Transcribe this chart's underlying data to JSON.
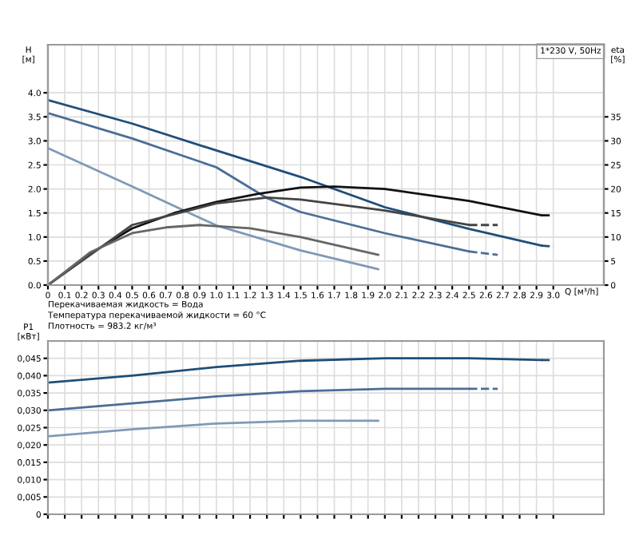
{
  "chart_data": [
    {
      "type": "line",
      "title": "1*230 V, 50Hz",
      "xlabel": "Q [м³/h]",
      "ylabel": "H\n[м]",
      "y2label": "eta\n[%]",
      "xlim": [
        0,
        3.3
      ],
      "xticks": [
        0,
        0.1,
        0.2,
        0.3,
        0.4,
        0.5,
        0.6,
        0.7,
        0.8,
        0.9,
        {
          "value": 1,
          "label": "1.0"
        },
        1.1,
        1.2,
        1.3,
        1.4,
        1.5,
        1.6,
        1.7,
        1.8,
        1.9,
        {
          "value": 2,
          "label": "2.0"
        },
        2.1,
        2.2,
        2.3,
        2.4,
        2.5,
        2.6,
        2.7,
        2.8,
        2.9,
        {
          "value": 3,
          "label": "3.0"
        }
      ],
      "ylim": [
        0,
        5.0
      ],
      "yticks": [
        {
          "value": 0,
          "label": "0.0"
        },
        0.5,
        {
          "value": 1,
          "label": "1.0"
        },
        1.5,
        {
          "value": 2,
          "label": "2.0"
        },
        2.5,
        {
          "value": 3,
          "label": "3.0"
        },
        3.5,
        {
          "value": 4,
          "label": "4.0"
        }
      ],
      "y2lim": [
        0,
        50
      ],
      "y2ticks": [
        0,
        5,
        10,
        15,
        20,
        25,
        30,
        35
      ],
      "grid": true,
      "annotations": [
        "Перекачиваемая жидкость = Вода",
        "Температура перекачиваемой жидкости = 60 °C",
        "Плотность = 983.2 кг/м³"
      ],
      "series": [
        {
          "color": "#1f4e79",
          "x": [
            0,
            0.5,
            1.0,
            1.5,
            2.0,
            2.5,
            2.93
          ],
          "values": [
            3.85,
            3.36,
            2.8,
            2.25,
            1.62,
            1.17,
            0.82
          ]
        },
        {
          "color": "#1f4e79",
          "line_style": "dashed",
          "x": [
            2.93,
            3.0
          ],
          "values": [
            0.82,
            0.8
          ]
        },
        {
          "color": "#4a6e96",
          "x": [
            0,
            0.5,
            1.0,
            1.3,
            1.5,
            2.0,
            2.5
          ],
          "values": [
            3.58,
            3.05,
            2.45,
            1.81,
            1.52,
            1.08,
            0.7
          ]
        },
        {
          "color": "#4a6e96",
          "line_style": "dashed",
          "x": [
            2.5,
            2.67
          ],
          "values": [
            0.7,
            0.63
          ]
        },
        {
          "color": "#7f99b8",
          "x": [
            0,
            0.5,
            1.0,
            1.5,
            1.96
          ],
          "values": [
            2.85,
            2.05,
            1.24,
            0.72,
            0.33
          ]
        },
        {
          "color": "#111111",
          "axis": "y2",
          "x": [
            0,
            0.25,
            0.5,
            0.75,
            1.0,
            1.25,
            1.5,
            1.7,
            2.0,
            2.5,
            2.93
          ],
          "values": [
            0,
            6.5,
            11.8,
            15,
            17.3,
            19,
            20.3,
            20.5,
            20,
            17.5,
            14.5
          ]
        },
        {
          "color": "#111111",
          "axis": "y2",
          "line_style": "dashed",
          "x": [
            2.93,
            3.0
          ],
          "values": [
            14.5,
            14.5
          ]
        },
        {
          "color": "#444444",
          "axis": "y2",
          "x": [
            0,
            0.5,
            1.0,
            1.3,
            1.5,
            2.0,
            2.5
          ],
          "values": [
            0,
            12.5,
            17,
            18.2,
            17.8,
            15.5,
            12.5
          ]
        },
        {
          "color": "#444444",
          "axis": "y2",
          "line_style": "dashed",
          "x": [
            2.5,
            2.67
          ],
          "values": [
            12.5,
            12.5
          ]
        },
        {
          "color": "#666666",
          "axis": "y2",
          "x": [
            0,
            0.25,
            0.5,
            0.7,
            0.9,
            1.2,
            1.5,
            1.96
          ],
          "values": [
            0,
            6.8,
            10.8,
            12,
            12.5,
            11.8,
            10,
            6.3
          ]
        }
      ]
    },
    {
      "type": "line",
      "ylabel": "P1\n[кВт]",
      "tick_labels": "y",
      "xlim": [
        0,
        3.3
      ],
      "xticks": [
        0,
        0.1,
        0.2,
        0.3,
        0.4,
        0.5,
        0.6,
        0.7,
        0.8,
        0.9,
        1.0,
        1.1,
        1.2,
        1.3,
        1.4,
        1.5,
        1.6,
        1.7,
        1.8,
        1.9,
        2.0,
        2.1,
        2.2,
        2.3,
        2.4,
        2.5,
        2.6,
        2.7,
        2.8,
        2.9,
        3.0
      ],
      "ylim": [
        0,
        0.05
      ],
      "yticks": [
        0,
        {
          "value": 0.005,
          "label": "0,005"
        },
        {
          "value": 0.01,
          "label": "0,010"
        },
        {
          "value": 0.015,
          "label": "0,015"
        },
        {
          "value": 0.02,
          "label": "0,020"
        },
        {
          "value": 0.025,
          "label": "0,025"
        },
        {
          "value": 0.03,
          "label": "0,030"
        },
        {
          "value": 0.035,
          "label": "0,035"
        },
        {
          "value": 0.04,
          "label": "0,040"
        },
        {
          "value": 0.045,
          "label": "0,045"
        }
      ],
      "grid": true,
      "series": [
        {
          "color": "#1f4e79",
          "x": [
            0,
            0.5,
            1.0,
            1.5,
            2.0,
            2.5,
            2.93
          ],
          "values": [
            0.038,
            0.04,
            0.0425,
            0.0443,
            0.045,
            0.045,
            0.0445
          ]
        },
        {
          "color": "#1f4e79",
          "line_style": "dashed",
          "x": [
            2.93,
            3.0
          ],
          "values": [
            0.0445,
            0.0445
          ]
        },
        {
          "color": "#4a6e96",
          "x": [
            0,
            0.5,
            1.0,
            1.5,
            2.0,
            2.5
          ],
          "values": [
            0.03,
            0.032,
            0.034,
            0.0355,
            0.0362,
            0.0362
          ]
        },
        {
          "color": "#4a6e96",
          "line_style": "dashed",
          "x": [
            2.5,
            2.67
          ],
          "values": [
            0.0362,
            0.0362
          ]
        },
        {
          "color": "#7f99b8",
          "x": [
            0,
            0.5,
            1.0,
            1.5,
            1.96
          ],
          "values": [
            0.0225,
            0.0245,
            0.0262,
            0.027,
            0.027
          ]
        }
      ]
    }
  ]
}
